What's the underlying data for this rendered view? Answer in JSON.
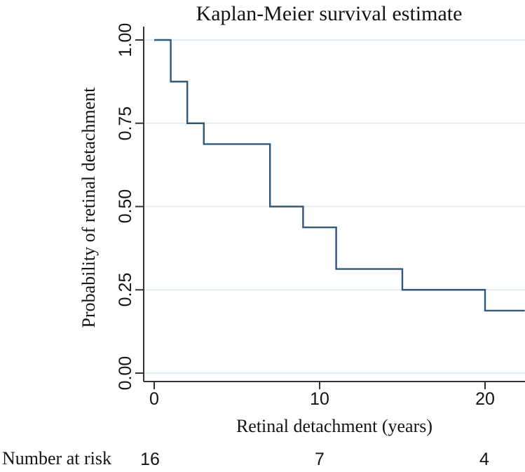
{
  "chart_data": {
    "type": "line",
    "subtype": "step-survival",
    "title": "Kaplan-Meier survival estimate",
    "xlabel": "Retinal detachment (years)",
    "ylabel": "Probability of retinal detachment",
    "xlim": [
      0,
      22.4
    ],
    "ylim": [
      0,
      1
    ],
    "x_ticks": [
      0,
      10,
      20
    ],
    "x_tick_labels": [
      "0",
      "10",
      "20"
    ],
    "y_ticks": [
      0.0,
      0.25,
      0.5,
      0.75,
      1.0
    ],
    "y_tick_labels": [
      "0.00",
      "0.25",
      "0.50",
      "0.75",
      "1.00"
    ],
    "grid": "horizontal-only",
    "legend": "none",
    "line_color": "#30587d",
    "grid_color": "#e2ecf3",
    "axis_color": "#333333",
    "steps": [
      {
        "t": 0,
        "survival": 1.0
      },
      {
        "t": 1,
        "survival": 0.875
      },
      {
        "t": 2,
        "survival": 0.75
      },
      {
        "t": 3,
        "survival": 0.6875
      },
      {
        "t": 7,
        "survival": 0.5
      },
      {
        "t": 9,
        "survival": 0.4375
      },
      {
        "t": 11,
        "survival": 0.3125
      },
      {
        "t": 15,
        "survival": 0.25
      },
      {
        "t": 20,
        "survival": 0.1875
      }
    ],
    "curve_end_x": 22.4
  },
  "risk_table": {
    "label": "Number at risk",
    "times": [
      0,
      10,
      20
    ],
    "values": [
      "16",
      "7",
      "4"
    ]
  }
}
